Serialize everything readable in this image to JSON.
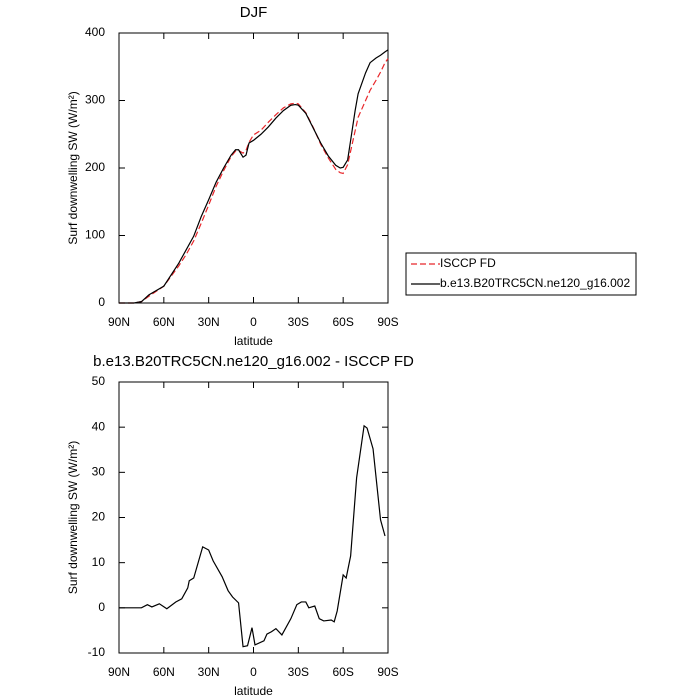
{
  "chart_data": [
    {
      "type": "line",
      "title": "DJF",
      "x_label": "latitude",
      "y_label": "Surf downwelling SW (W/m²)",
      "xlim": [
        90,
        -90
      ],
      "xticks": [
        {
          "value": 90,
          "label": "90N"
        },
        {
          "value": 60,
          "label": "60N"
        },
        {
          "value": 30,
          "label": "30N"
        },
        0,
        {
          "value": -30,
          "label": "30S"
        },
        {
          "value": -60,
          "label": "60S"
        },
        {
          "value": -90,
          "label": "90S"
        }
      ],
      "ylim": [
        0,
        400
      ],
      "yticks": [
        0,
        100,
        200,
        300,
        400
      ],
      "x": [
        90,
        80,
        75,
        70,
        60,
        50,
        45,
        40,
        35,
        30,
        25,
        20,
        15,
        12,
        10,
        7,
        5,
        3,
        0,
        -5,
        -10,
        -15,
        -20,
        -25,
        -28,
        -30,
        -35,
        -40,
        -45,
        -50,
        -55,
        -58,
        -60,
        -63,
        -65,
        -68,
        -70,
        -75,
        -78,
        -82,
        -85,
        -88,
        -90
      ],
      "legend": "right",
      "series": [
        {
          "name": "ISCCP FD",
          "color": "#e8262a",
          "linestyle": "dashed",
          "values": [
            0,
            0,
            2,
            10,
            25,
            55,
            72,
            92,
            118,
            145,
            173,
            196,
            217,
            225,
            226,
            222,
            226,
            238,
            249,
            256,
            268,
            279,
            289,
            295,
            296,
            295,
            282,
            260,
            235,
            215,
            198,
            193,
            192,
            205,
            225,
            255,
            275,
            300,
            315,
            330,
            342,
            356,
            362
          ]
        },
        {
          "name": "b.e13.B20TRC5CN.ne120_g16.002",
          "color": "#000000",
          "linestyle": "solid",
          "values": [
            0,
            0,
            2,
            12,
            25,
            59,
            79,
            99,
            128,
            153,
            179,
            200,
            219,
            227,
            227,
            216,
            219,
            237,
            241,
            250,
            261,
            274,
            285,
            293,
            294,
            293,
            281,
            259,
            237,
            218,
            204,
            200,
            201,
            212,
            241,
            285,
            310,
            341,
            356,
            363,
            367,
            372,
            375
          ]
        }
      ]
    },
    {
      "type": "line",
      "title": "b.e13.B20TRC5CN.ne120_g16.002 - ISCCP FD",
      "x_label": "latitude",
      "y_label": "Surf downwelling SW (W/m²)",
      "xlim": [
        90,
        -90
      ],
      "xticks": [
        {
          "value": 90,
          "label": "90N"
        },
        {
          "value": 60,
          "label": "60N"
        },
        {
          "value": 30,
          "label": "30N"
        },
        0,
        {
          "value": -30,
          "label": "30S"
        },
        {
          "value": -60,
          "label": "60S"
        },
        {
          "value": -90,
          "label": "90S"
        }
      ],
      "ylim": [
        -10,
        50
      ],
      "yticks": [
        -10,
        0,
        10,
        20,
        30,
        40,
        50
      ],
      "x": [
        90,
        75,
        71,
        68,
        63,
        58,
        52,
        48,
        44,
        43,
        40,
        34,
        30,
        27,
        21,
        17,
        14,
        10,
        7,
        4,
        1,
        -1,
        -7,
        -9,
        -12,
        -15,
        -19,
        -25,
        -29,
        -32,
        -35,
        -37,
        -41,
        -44,
        -47,
        -52,
        -54,
        -56,
        -60,
        -62,
        -65,
        -69,
        -74,
        -76,
        -80,
        -85,
        -88
      ],
      "series": [
        {
          "color": "#000000",
          "linestyle": "solid",
          "values": [
            0,
            0,
            0.7,
            0.2,
            0.9,
            -0.2,
            1.3,
            2,
            4.4,
            6,
            6.6,
            13.5,
            12.8,
            10.4,
            6.9,
            3.8,
            2.4,
            1.1,
            -8.6,
            -8.4,
            -4.4,
            -8.2,
            -7.3,
            -5.8,
            -5.3,
            -4.6,
            -6,
            -2.4,
            0.7,
            1.3,
            1.3,
            0,
            0.4,
            -2.4,
            -2.9,
            -2.7,
            -3.1,
            -0.7,
            7.3,
            6.6,
            11.5,
            28.8,
            40.3,
            39.8,
            35.2,
            19.5,
            15.9
          ]
        }
      ]
    }
  ]
}
